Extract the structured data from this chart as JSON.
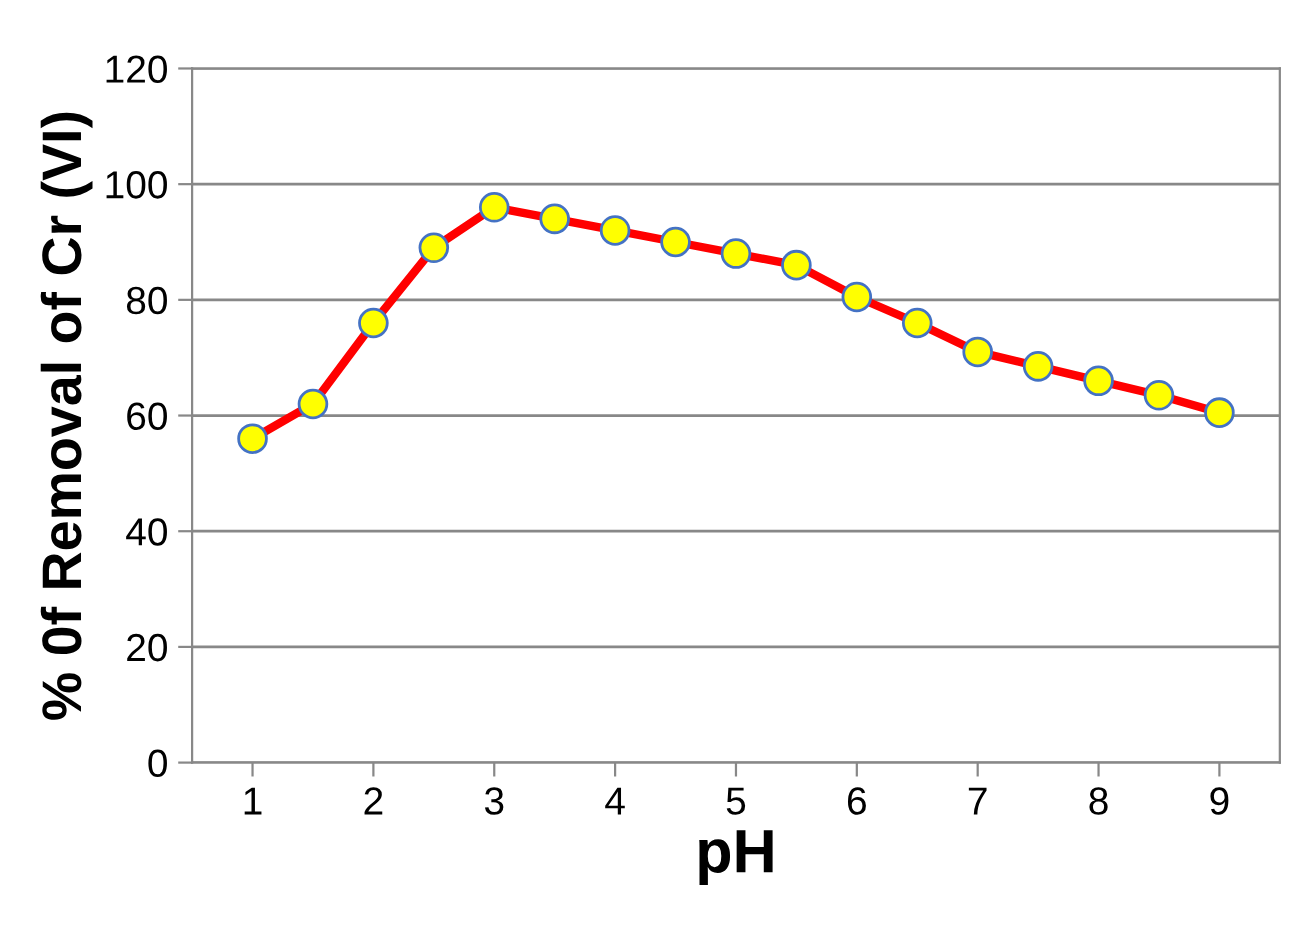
{
  "chart_data": {
    "type": "line",
    "xlabel": "pH",
    "ylabel": "% 0f Removal of Cr (VI)",
    "x": [
      1,
      1.5,
      2,
      2.5,
      3,
      3.5,
      4,
      4.5,
      5,
      5.5,
      6,
      6.5,
      7,
      7.5,
      8,
      8.5,
      9
    ],
    "series": [
      {
        "color": "#ff0000",
        "values": [
          56,
          62,
          76,
          89,
          96,
          94,
          92,
          90,
          88,
          86,
          80.5,
          76,
          71,
          68.5,
          66,
          63.5,
          60.5
        ]
      }
    ],
    "xlim": [
      0.5,
      9.5
    ],
    "xticks": [
      1,
      2,
      3,
      4,
      5,
      6,
      7,
      8,
      9
    ],
    "ylim": [
      0,
      120
    ],
    "yticks": [
      0,
      20,
      40,
      60,
      80,
      100,
      120
    ],
    "grid": "y",
    "marker": "circle",
    "line_style": "solid",
    "legend": false
  }
}
